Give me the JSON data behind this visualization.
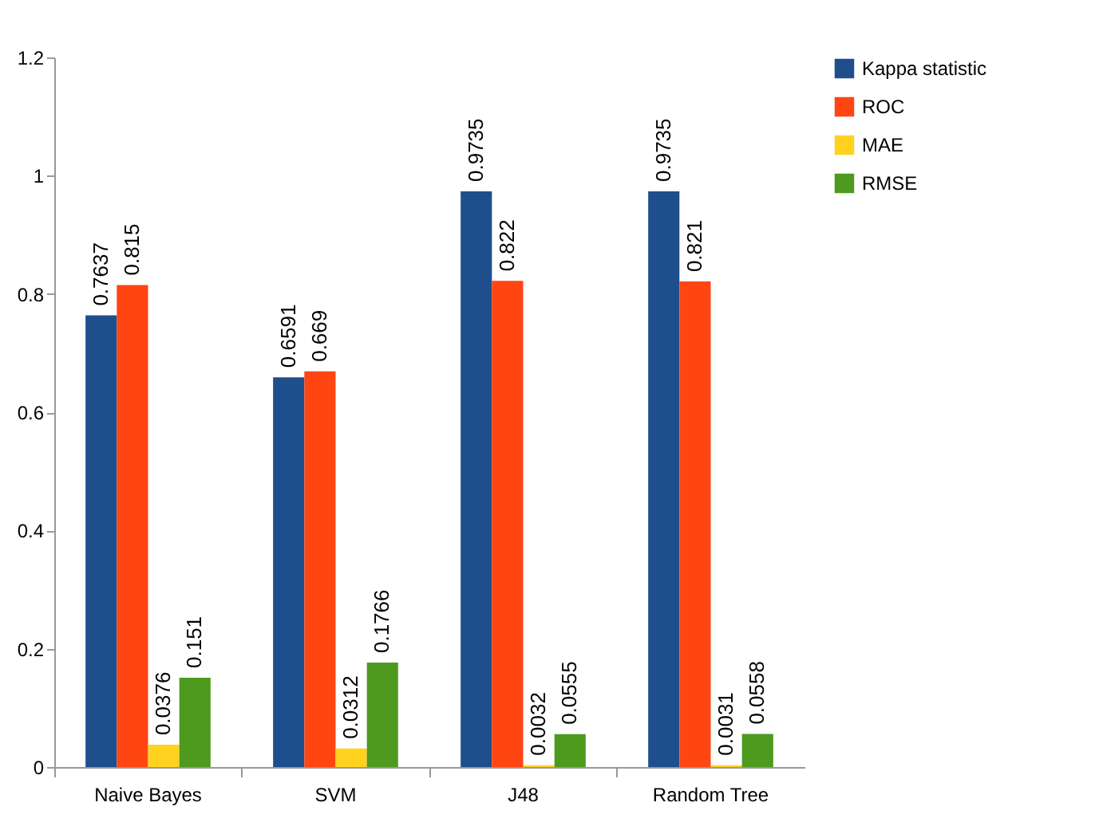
{
  "chart_data": {
    "type": "bar",
    "categories": [
      "Naive Bayes",
      "SVM",
      "J48",
      "Random Tree"
    ],
    "series": [
      {
        "name": "Kappa statistic",
        "color": "#1f4e8c",
        "values": [
          0.7637,
          0.6591,
          0.9735,
          0.9735
        ]
      },
      {
        "name": "ROC",
        "color": "#ff4512",
        "values": [
          0.815,
          0.669,
          0.822,
          0.821
        ]
      },
      {
        "name": "MAE",
        "color": "#ffd21f",
        "values": [
          0.0376,
          0.0312,
          0.0032,
          0.0031
        ]
      },
      {
        "name": "RMSE",
        "color": "#4e9a1f",
        "values": [
          0.151,
          0.1766,
          0.0555,
          0.0558
        ]
      }
    ],
    "ylim": [
      0,
      1.2
    ],
    "yticks": [
      0,
      0.2,
      0.4,
      0.6,
      0.8,
      1,
      1.2
    ],
    "grid": false,
    "legend": "right",
    "data_labels": true
  }
}
